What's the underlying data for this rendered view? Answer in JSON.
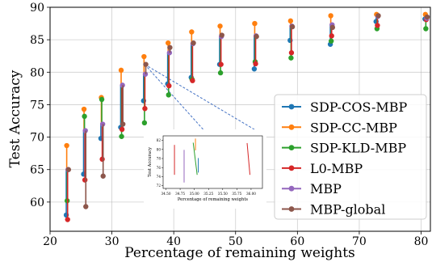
{
  "chart_data": {
    "type": "scatter",
    "xlabel": "Percentage of remaining weights",
    "ylabel": "Test Accuracy",
    "xlim": [
      20,
      81.5
    ],
    "ylim": [
      55.5,
      90
    ],
    "xticks": [
      20,
      30,
      40,
      50,
      60,
      70,
      80
    ],
    "yticks": [
      60,
      65,
      70,
      75,
      80,
      85,
      90
    ],
    "grid": true,
    "legend_position": "lower-right",
    "series": [
      {
        "name": "SDP-COS-MBP",
        "color": "#1f77b4",
        "x": [
          22.8,
          25.6,
          28.4,
          31.6,
          35.3,
          39.2,
          43.0,
          47.6,
          53.2,
          59.0,
          65.5,
          72.9,
          80.8
        ],
        "y": [
          58.0,
          64.3,
          69.8,
          71.5,
          75.6,
          78.2,
          79.2,
          81.2,
          80.5,
          84.9,
          84.3,
          87.8,
          88.2
        ]
      },
      {
        "name": "SDP-CC-MBP",
        "color": "#ff7f0e",
        "x": [
          22.8,
          25.6,
          28.4,
          31.6,
          35.3,
          39.2,
          43.0,
          47.6,
          53.2,
          59.0,
          65.5,
          72.9,
          80.8
        ],
        "y": [
          68.7,
          74.3,
          76.1,
          80.3,
          82.4,
          84.5,
          86.2,
          87.1,
          87.5,
          87.9,
          88.7,
          88.9,
          88.9
        ]
      },
      {
        "name": "SDP-KLD-MBP",
        "color": "#2ca02c",
        "x": [
          22.8,
          25.6,
          28.4,
          31.6,
          35.3,
          39.2,
          43.0,
          47.6,
          53.2,
          59.0,
          65.5,
          72.9,
          80.8
        ],
        "y": [
          60.2,
          73.2,
          75.8,
          70.1,
          72.2,
          76.5,
          78.9,
          79.9,
          81.6,
          82.2,
          84.8,
          86.7,
          86.7
        ]
      },
      {
        "name": "L0-MBP",
        "color": "#d62728",
        "x": [
          22.8,
          25.6,
          28.4,
          31.6,
          35.3,
          39.2,
          43.0,
          47.6,
          53.2,
          59.0,
          65.5,
          72.9,
          80.8
        ],
        "y": [
          57.3,
          63.4,
          66.6,
          71.2,
          74.4,
          77.9,
          78.7,
          81.2,
          81.3,
          83.0,
          85.6,
          87.2,
          88.1
        ]
      },
      {
        "name": "MBP",
        "color": "#9467bd",
        "x": [
          22.8,
          25.6,
          28.4,
          31.6,
          35.3,
          39.2,
          43.0,
          47.6,
          53.2,
          59.0,
          65.5,
          72.9,
          80.8
        ],
        "y": [
          65.0,
          71.0,
          72.0,
          78.0,
          79.7,
          83.0,
          84.4,
          85.5,
          85.6,
          87.1,
          87.3,
          88.6,
          88.3
        ]
      },
      {
        "name": "MBP-global",
        "color": "#8c564b",
        "x": [
          22.8,
          25.6,
          28.4,
          31.6,
          35.3,
          39.2,
          43.0,
          47.6,
          53.2,
          59.0,
          65.5,
          72.9,
          80.8
        ],
        "y": [
          65.0,
          59.3,
          64.0,
          72.0,
          81.2,
          83.8,
          84.5,
          85.7,
          85.5,
          87.0,
          86.9,
          88.7,
          88.5
        ]
      }
    ],
    "inset": {
      "xlabel": "Percentage of remaining weights",
      "ylabel": "Test Accuracy",
      "xlim": [
        34.45,
        36.2
      ],
      "ylim": [
        71.4,
        83.0
      ],
      "xticks": [
        34.5,
        34.75,
        35.0,
        35.25,
        35.5,
        35.75,
        36.0
      ],
      "xtick_labels": [
        "34.50",
        "34.75",
        "35.00",
        "35.25",
        "35.50",
        "35.75",
        "36.00"
      ],
      "yticks": [
        72,
        74,
        76,
        78,
        80,
        82
      ],
      "segments": [
        {
          "series": "L0-MBP",
          "x": [
            34.65,
            34.65
          ],
          "y": [
            81.0,
            74.4
          ]
        },
        {
          "series": "MBP",
          "x": [
            34.82,
            34.82
          ],
          "y": [
            79.9,
            72.7
          ]
        },
        {
          "series": "SDP-CC-MBP",
          "x": [
            35.02,
            35.02
          ],
          "y": [
            82.4,
            79.8
          ]
        },
        {
          "series": "SDP-KLD-MBP",
          "x": [
            34.98,
            35.05
          ],
          "y": [
            81.5,
            74.4
          ]
        },
        {
          "series": "SDP-COS-MBP",
          "x": [
            35.07,
            35.07
          ],
          "y": [
            78.1,
            74.9
          ]
        },
        {
          "series": "L0-MBP",
          "x": [
            35.93,
            35.98
          ],
          "y": [
            81.4,
            74.4
          ]
        }
      ]
    }
  }
}
